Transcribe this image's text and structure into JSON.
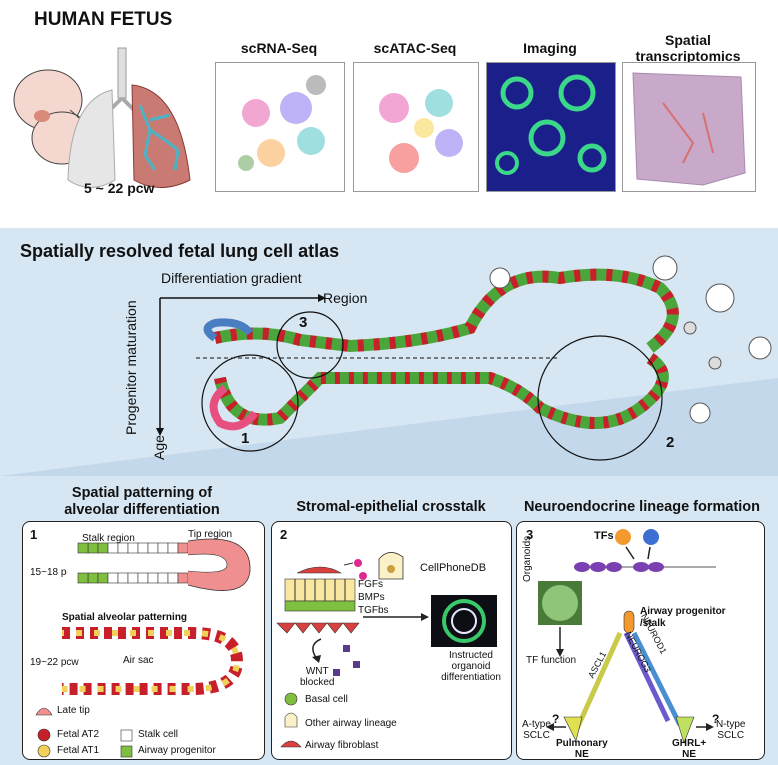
{
  "header": {
    "title": "HUMAN FETUS",
    "age_range": "5 ~ 22 pcw",
    "panels": [
      {
        "label": "scRNA-Seq"
      },
      {
        "label": "scATAC-Seq"
      },
      {
        "label": "Imaging"
      },
      {
        "label": "Spatial\ntranscriptomics"
      }
    ]
  },
  "atlas": {
    "title": "Spatially resolved fetal lung cell atlas",
    "diff_gradient": "Differentiation gradient",
    "region": "Region",
    "progenitor_maturation": "Progenitor maturation",
    "age": "Age",
    "circle_labels": [
      "1",
      "2",
      "3"
    ]
  },
  "sections": {
    "s1": {
      "title": "Spatial patterning of\nalveolar differentiation",
      "num": "1",
      "stalk_region": "Stalk region",
      "tip_region": "Tip region",
      "pcw_a": "15~18 pcw",
      "spatial_alveolar": "Spatial alveolar patterning",
      "pcw_b": "19~22 pcw",
      "air_sac": "Air sac",
      "legend": {
        "late_tip": "Late tip",
        "fetal_at2": "Fetal AT2",
        "fetal_at1": "Fetal AT1",
        "stalk_cell": "Stalk cell",
        "airway_progenitor": "Airway progenitor"
      }
    },
    "s2": {
      "title": "Stromal-epithelial crosstalk",
      "num": "2",
      "cellphonedb": "CellPhoneDB",
      "fgfs": "FGFs",
      "bmps": "BMPs",
      "tgfbs": "TGFbs",
      "wnt": "WNT\nblocked",
      "organoid": "Instructed\norganoid\ndifferentiation",
      "legend": {
        "basal": "Basal cell",
        "other": "Other airway lineage",
        "fibroblast": "Airway fibroblast"
      }
    },
    "s3": {
      "title": "Neuroendocrine lineage formation",
      "num": "3",
      "tfs": "TFs",
      "organoids": "Organoids",
      "airway_prog": "Airway progenitor\n/stalk",
      "tf_function": "TF function",
      "ascl1": "ASCL1",
      "neurog3": "NEUROG3",
      "neurod1": "NEUROD1",
      "a_type": "A-type\nSCLC",
      "n_type": "N-type\nSCLC",
      "pulmonary_ne": "Pulmonary\nNE",
      "ghrl_ne": "GHRL+\nNE",
      "q": "?"
    }
  },
  "colors": {
    "band_blue": "#d6e6f2",
    "fetal_at2": "#c8202a",
    "late_tip": "#ef8f8f",
    "at1": "#f0d15a",
    "airway_prog": "#7fbf3f",
    "stalk": "#ffffff"
  }
}
